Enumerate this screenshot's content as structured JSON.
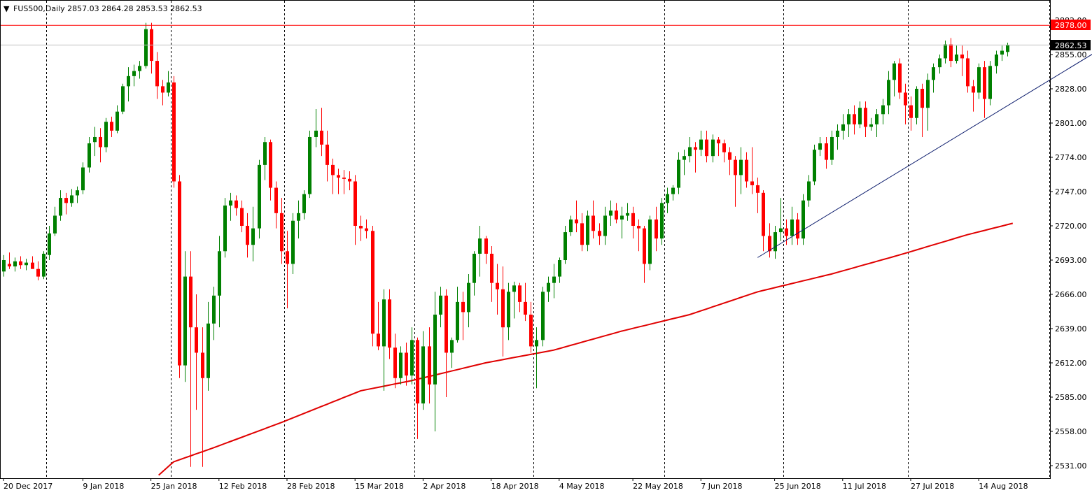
{
  "header": {
    "arrow": "▼",
    "text": "FUS500,Daily  2857.03 2864.28 2853.53 2862.53"
  },
  "price_labels": {
    "resistance": "2878.00",
    "current": "2862.53"
  },
  "colors": {
    "bull": "#008000",
    "bear": "#ff0000",
    "ma": "#e00000",
    "trend": "#0a1a6b",
    "resistance": "#ff0000",
    "current_line": "#c0c0c0",
    "grid": "#000000"
  },
  "chart_data": {
    "type": "candlestick",
    "title": "FUS500,Daily",
    "timeframe": "Daily",
    "ylim": [
      2520,
      2891
    ],
    "y_ticks": [
      "2882.00",
      "2855.00",
      "2828.00",
      "2801.00",
      "2774.00",
      "2747.00",
      "2720.00",
      "2693.00",
      "2666.00",
      "2639.00",
      "2612.00",
      "2585.00",
      "2558.00",
      "2531.00"
    ],
    "x_labels": [
      {
        "index": 0,
        "label": "20 Dec 2017"
      },
      {
        "index": 14,
        "label": "9 Jan 2018"
      },
      {
        "index": 26,
        "label": "25 Jan 2018"
      },
      {
        "index": 38,
        "label": "12 Feb 2018"
      },
      {
        "index": 50,
        "label": "28 Feb 2018"
      },
      {
        "index": 62,
        "label": "15 Mar 2018"
      },
      {
        "index": 74,
        "label": "2 Apr 2018"
      },
      {
        "index": 86,
        "label": "18 Apr 2018"
      },
      {
        "index": 98,
        "label": "4 May 2018"
      },
      {
        "index": 111,
        "label": "22 May 2018"
      },
      {
        "index": 123,
        "label": "7 Jun 2018"
      },
      {
        "index": 136,
        "label": "25 Jun 2018"
      },
      {
        "index": 148,
        "label": "11 Jul 2018"
      },
      {
        "index": 160,
        "label": "27 Jul 2018"
      },
      {
        "index": 172,
        "label": "14 Aug 2018"
      }
    ],
    "vgrid_index": [
      7.5,
      29.5,
      49.5,
      72.5,
      93.5,
      116.5,
      137.5,
      159.5,
      184.5
    ],
    "last_ohlc": {
      "open": 2857.03,
      "high": 2864.28,
      "low": 2853.53,
      "close": 2862.53
    },
    "resistance_level": 2878.0,
    "current_price": 2862.53,
    "candles": [
      [
        2684,
        2697,
        2680,
        2693
      ],
      [
        2690,
        2699,
        2686,
        2688
      ],
      [
        2688,
        2695,
        2684,
        2692
      ],
      [
        2692,
        2696,
        2686,
        2689
      ],
      [
        2689,
        2694,
        2685,
        2691
      ],
      [
        2691,
        2696,
        2687,
        2686
      ],
      [
        2686,
        2692,
        2677,
        2680
      ],
      [
        2680,
        2700,
        2678,
        2698
      ],
      [
        2697,
        2720,
        2693,
        2714
      ],
      [
        2714,
        2735,
        2712,
        2728
      ],
      [
        2728,
        2748,
        2724,
        2742
      ],
      [
        2742,
        2746,
        2729,
        2738
      ],
      [
        2738,
        2749,
        2735,
        2744
      ],
      [
        2744,
        2751,
        2738,
        2748
      ],
      [
        2748,
        2770,
        2745,
        2766
      ],
      [
        2766,
        2790,
        2762,
        2785
      ],
      [
        2786,
        2798,
        2775,
        2790
      ],
      [
        2790,
        2797,
        2770,
        2782
      ],
      [
        2782,
        2805,
        2778,
        2802
      ],
      [
        2802,
        2806,
        2790,
        2795
      ],
      [
        2795,
        2815,
        2793,
        2810
      ],
      [
        2810,
        2832,
        2808,
        2830
      ],
      [
        2830,
        2845,
        2818,
        2838
      ],
      [
        2838,
        2847,
        2830,
        2842
      ],
      [
        2842,
        2850,
        2836,
        2846
      ],
      [
        2846,
        2880,
        2844,
        2875
      ],
      [
        2875,
        2880,
        2840,
        2850
      ],
      [
        2850,
        2857,
        2820,
        2830
      ],
      [
        2830,
        2835,
        2815,
        2825
      ],
      [
        2825,
        2842,
        2822,
        2833
      ],
      [
        2833,
        2838,
        2750,
        2755
      ],
      [
        2755,
        2760,
        2600,
        2610
      ],
      [
        2610,
        2700,
        2597,
        2680
      ],
      [
        2680,
        2700,
        2530,
        2640
      ],
      [
        2640,
        2666,
        2575,
        2620
      ],
      [
        2620,
        2640,
        2530,
        2600
      ],
      [
        2600,
        2660,
        2590,
        2643
      ],
      [
        2643,
        2672,
        2630,
        2665
      ],
      [
        2665,
        2712,
        2640,
        2700
      ],
      [
        2700,
        2742,
        2695,
        2736
      ],
      [
        2736,
        2746,
        2724,
        2740
      ],
      [
        2740,
        2744,
        2728,
        2734
      ],
      [
        2734,
        2740,
        2715,
        2720
      ],
      [
        2720,
        2730,
        2695,
        2705
      ],
      [
        2705,
        2735,
        2692,
        2718
      ],
      [
        2718,
        2772,
        2710,
        2768
      ],
      [
        2768,
        2790,
        2756,
        2786
      ],
      [
        2786,
        2788,
        2740,
        2750
      ],
      [
        2750,
        2755,
        2718,
        2730
      ],
      [
        2730,
        2742,
        2690,
        2700
      ],
      [
        2700,
        2716,
        2655,
        2690
      ],
      [
        2690,
        2730,
        2682,
        2724
      ],
      [
        2724,
        2740,
        2710,
        2730
      ],
      [
        2730,
        2748,
        2725,
        2745
      ],
      [
        2745,
        2795,
        2742,
        2790
      ],
      [
        2790,
        2812,
        2782,
        2795
      ],
      [
        2795,
        2813,
        2775,
        2784
      ],
      [
        2784,
        2795,
        2755,
        2768
      ],
      [
        2768,
        2773,
        2745,
        2760
      ],
      [
        2760,
        2765,
        2745,
        2758
      ],
      [
        2758,
        2764,
        2745,
        2757
      ],
      [
        2757,
        2763,
        2748,
        2755
      ],
      [
        2755,
        2760,
        2705,
        2720
      ],
      [
        2720,
        2728,
        2708,
        2718
      ],
      [
        2718,
        2725,
        2710,
        2716
      ],
      [
        2716,
        2720,
        2625,
        2635
      ],
      [
        2635,
        2660,
        2622,
        2625
      ],
      [
        2625,
        2670,
        2590,
        2662
      ],
      [
        2662,
        2670,
        2615,
        2624
      ],
      [
        2624,
        2635,
        2592,
        2600
      ],
      [
        2600,
        2625,
        2595,
        2620
      ],
      [
        2620,
        2628,
        2594,
        2602
      ],
      [
        2602,
        2640,
        2595,
        2630
      ],
      [
        2630,
        2632,
        2552,
        2580
      ],
      [
        2580,
        2637,
        2575,
        2625
      ],
      [
        2625,
        2640,
        2580,
        2595
      ],
      [
        2595,
        2668,
        2558,
        2650
      ],
      [
        2650,
        2672,
        2640,
        2665
      ],
      [
        2665,
        2670,
        2585,
        2620
      ],
      [
        2620,
        2632,
        2608,
        2630
      ],
      [
        2630,
        2672,
        2628,
        2660
      ],
      [
        2660,
        2668,
        2630,
        2652
      ],
      [
        2652,
        2682,
        2640,
        2675
      ],
      [
        2675,
        2700,
        2665,
        2698
      ],
      [
        2698,
        2720,
        2680,
        2710
      ],
      [
        2710,
        2712,
        2690,
        2698
      ],
      [
        2698,
        2704,
        2660,
        2675
      ],
      [
        2675,
        2690,
        2650,
        2670
      ],
      [
        2670,
        2688,
        2617,
        2640
      ],
      [
        2640,
        2675,
        2630,
        2668
      ],
      [
        2668,
        2676,
        2647,
        2673
      ],
      [
        2673,
        2675,
        2652,
        2660
      ],
      [
        2660,
        2675,
        2645,
        2650
      ],
      [
        2650,
        2660,
        2620,
        2625
      ],
      [
        2625,
        2640,
        2592,
        2630
      ],
      [
        2630,
        2672,
        2625,
        2668
      ],
      [
        2668,
        2680,
        2660,
        2675
      ],
      [
        2675,
        2690,
        2663,
        2680
      ],
      [
        2680,
        2695,
        2675,
        2693
      ],
      [
        2693,
        2720,
        2690,
        2715
      ],
      [
        2715,
        2728,
        2712,
        2725
      ],
      [
        2725,
        2740,
        2715,
        2722
      ],
      [
        2722,
        2730,
        2700,
        2705
      ],
      [
        2705,
        2732,
        2700,
        2728
      ],
      [
        2728,
        2740,
        2710,
        2716
      ],
      [
        2716,
        2722,
        2705,
        2712
      ],
      [
        2712,
        2735,
        2705,
        2728
      ],
      [
        2728,
        2740,
        2720,
        2732
      ],
      [
        2732,
        2738,
        2722,
        2725
      ],
      [
        2725,
        2735,
        2710,
        2728
      ],
      [
        2728,
        2738,
        2724,
        2730
      ],
      [
        2730,
        2735,
        2710,
        2720
      ],
      [
        2720,
        2725,
        2700,
        2718
      ],
      [
        2718,
        2720,
        2675,
        2690
      ],
      [
        2690,
        2728,
        2685,
        2725
      ],
      [
        2725,
        2735,
        2700,
        2710
      ],
      [
        2710,
        2742,
        2705,
        2738
      ],
      [
        2738,
        2750,
        2730,
        2745
      ],
      [
        2745,
        2752,
        2740,
        2750
      ],
      [
        2750,
        2778,
        2745,
        2772
      ],
      [
        2772,
        2780,
        2760,
        2775
      ],
      [
        2775,
        2790,
        2770,
        2782
      ],
      [
        2782,
        2786,
        2762,
        2780
      ],
      [
        2780,
        2795,
        2775,
        2788
      ],
      [
        2788,
        2795,
        2770,
        2775
      ],
      [
        2775,
        2792,
        2770,
        2788
      ],
      [
        2788,
        2790,
        2775,
        2785
      ],
      [
        2785,
        2788,
        2770,
        2778
      ],
      [
        2778,
        2782,
        2760,
        2772
      ],
      [
        2772,
        2775,
        2735,
        2760
      ],
      [
        2760,
        2782,
        2745,
        2772
      ],
      [
        2772,
        2778,
        2750,
        2755
      ],
      [
        2755,
        2782,
        2745,
        2752
      ],
      [
        2752,
        2758,
        2730,
        2746
      ],
      [
        2746,
        2748,
        2700,
        2712
      ],
      [
        2712,
        2722,
        2695,
        2700
      ],
      [
        2700,
        2720,
        2694,
        2715
      ],
      [
        2715,
        2742,
        2708,
        2718
      ],
      [
        2718,
        2725,
        2705,
        2712
      ],
      [
        2712,
        2735,
        2705,
        2725
      ],
      [
        2725,
        2730,
        2705,
        2710
      ],
      [
        2710,
        2745,
        2705,
        2740
      ],
      [
        2740,
        2760,
        2735,
        2755
      ],
      [
        2755,
        2784,
        2752,
        2780
      ],
      [
        2780,
        2790,
        2775,
        2785
      ],
      [
        2785,
        2790,
        2765,
        2772
      ],
      [
        2772,
        2795,
        2768,
        2790
      ],
      [
        2790,
        2800,
        2780,
        2795
      ],
      [
        2795,
        2808,
        2788,
        2800
      ],
      [
        2800,
        2812,
        2790,
        2808
      ],
      [
        2808,
        2815,
        2792,
        2800
      ],
      [
        2800,
        2818,
        2797,
        2813
      ],
      [
        2813,
        2818,
        2790,
        2798
      ],
      [
        2798,
        2805,
        2795,
        2800
      ],
      [
        2800,
        2812,
        2790,
        2808
      ],
      [
        2808,
        2820,
        2800,
        2815
      ],
      [
        2815,
        2842,
        2808,
        2835
      ],
      [
        2835,
        2850,
        2822,
        2848
      ],
      [
        2848,
        2852,
        2820,
        2825
      ],
      [
        2825,
        2832,
        2800,
        2815
      ],
      [
        2815,
        2822,
        2795,
        2805
      ],
      [
        2805,
        2830,
        2800,
        2828
      ],
      [
        2828,
        2832,
        2790,
        2813
      ],
      [
        2813,
        2840,
        2795,
        2835
      ],
      [
        2835,
        2848,
        2825,
        2845
      ],
      [
        2845,
        2855,
        2840,
        2852
      ],
      [
        2852,
        2866,
        2848,
        2863
      ],
      [
        2863,
        2868,
        2845,
        2850
      ],
      [
        2850,
        2862,
        2848,
        2855
      ],
      [
        2855,
        2862,
        2838,
        2852
      ],
      [
        2852,
        2858,
        2825,
        2830
      ],
      [
        2830,
        2835,
        2810,
        2825
      ],
      [
        2825,
        2848,
        2820,
        2845
      ],
      [
        2845,
        2850,
        2805,
        2820
      ],
      [
        2820,
        2850,
        2815,
        2846
      ],
      [
        2846,
        2858,
        2840,
        2855
      ],
      [
        2855,
        2862,
        2850,
        2858
      ],
      [
        2857.03,
        2864.28,
        2853.53,
        2862.53
      ]
    ],
    "moving_average": {
      "anchors": [
        [
          26.5,
          2520
        ],
        [
          30,
          2534
        ],
        [
          37,
          2545
        ],
        [
          49,
          2565
        ],
        [
          63,
          2590
        ],
        [
          72,
          2598
        ],
        [
          85,
          2612
        ],
        [
          97,
          2622
        ],
        [
          109,
          2637
        ],
        [
          121,
          2650
        ],
        [
          133,
          2668
        ],
        [
          146,
          2682
        ],
        [
          158,
          2697
        ],
        [
          170,
          2713
        ],
        [
          178,
          2722
        ]
      ]
    },
    "trendline": {
      "start": [
        133,
        2695
      ],
      "end": [
        194.5,
        2862
      ]
    }
  }
}
